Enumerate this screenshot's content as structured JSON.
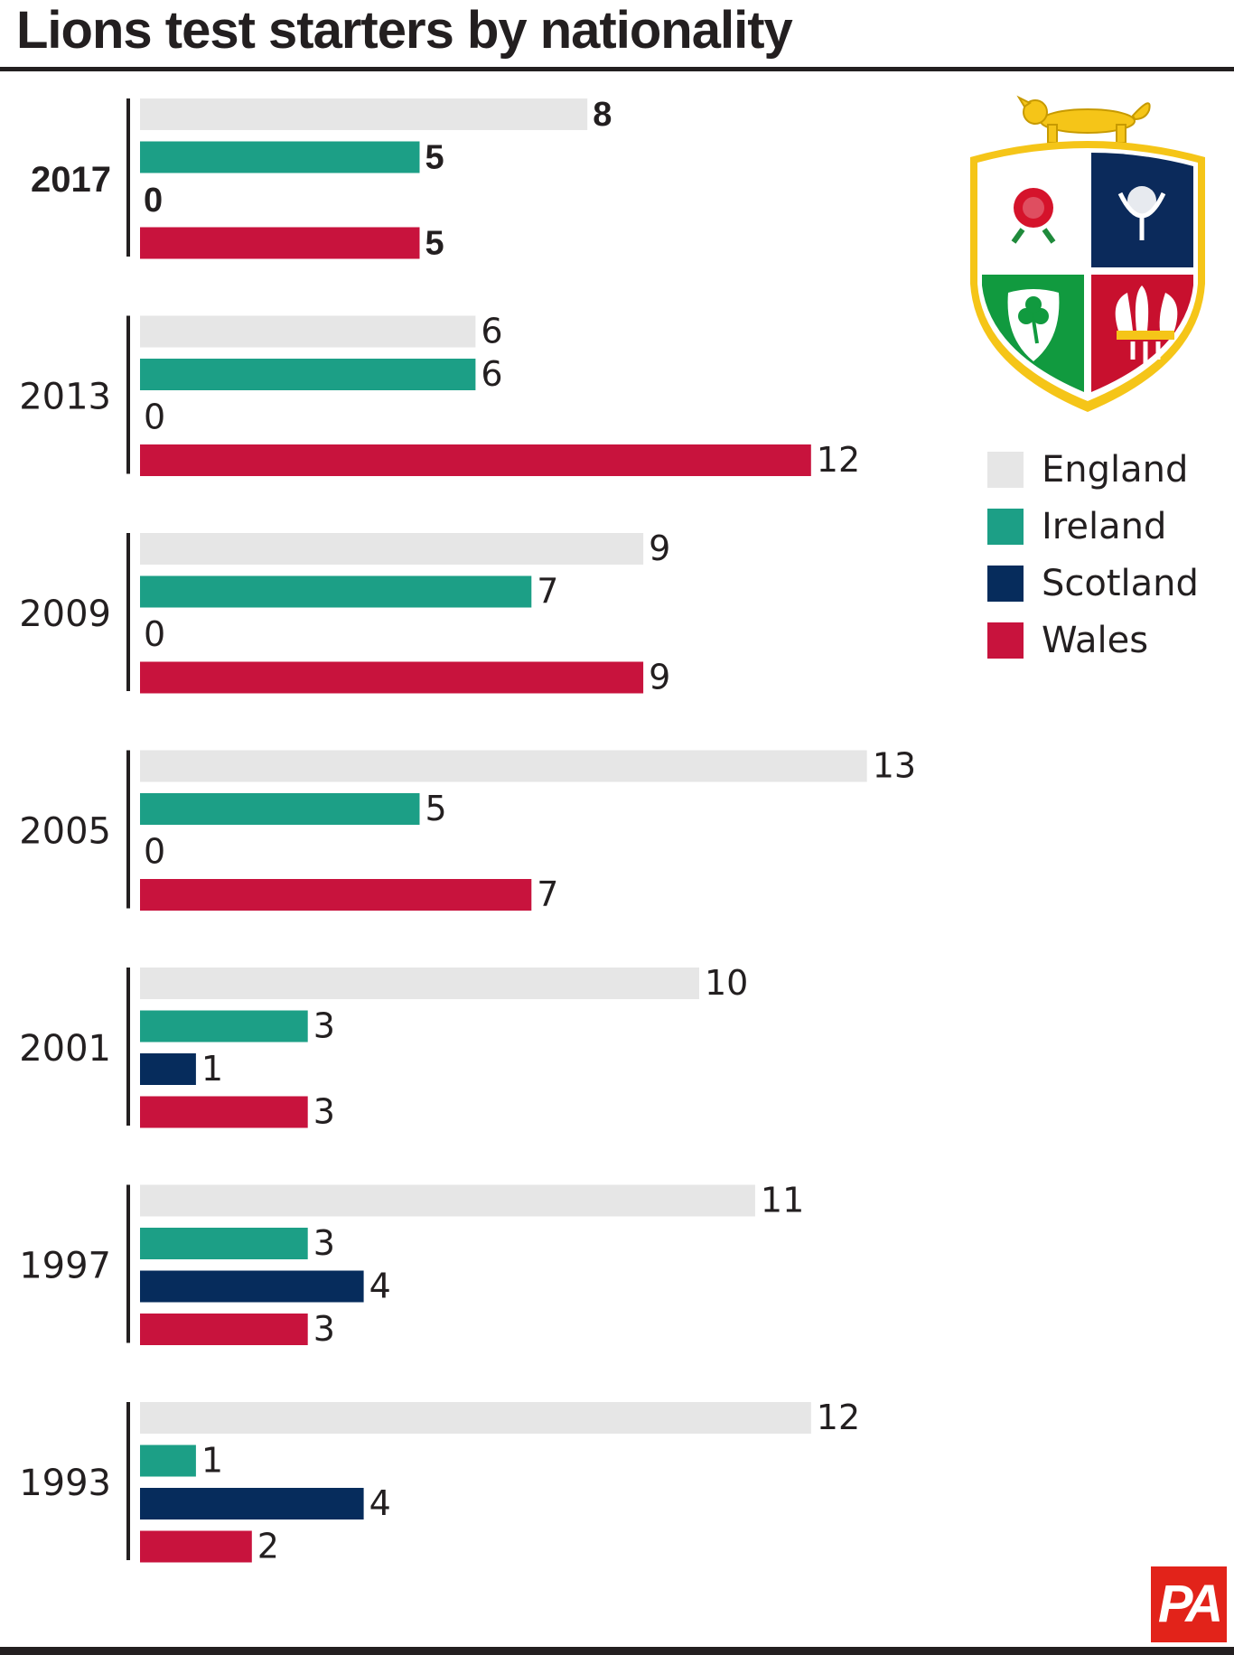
{
  "title": "Lions test starters by nationality",
  "colors": {
    "England": "#e6e6e6",
    "Ireland": "#1c9f86",
    "Scotland": "#062c5c",
    "Wales": "#c8133d"
  },
  "legend": [
    {
      "label": "England",
      "color": "#e6e6e6"
    },
    {
      "label": "Ireland",
      "color": "#1c9f86"
    },
    {
      "label": "Scotland",
      "color": "#062c5c"
    },
    {
      "label": "Wales",
      "color": "#c8133d"
    }
  ],
  "logo_text": "PA",
  "crest_icon": "british-irish-lions-crest",
  "chart_data": {
    "type": "bar",
    "orientation": "horizontal",
    "title": "Lions test starters by nationality",
    "categories": [
      "2017",
      "2013",
      "2009",
      "2005",
      "2001",
      "1997",
      "1993"
    ],
    "highlighted_category": "2017",
    "series": [
      {
        "name": "England",
        "values": [
          8,
          6,
          9,
          13,
          10,
          11,
          12
        ]
      },
      {
        "name": "Ireland",
        "values": [
          5,
          6,
          7,
          5,
          3,
          3,
          1
        ]
      },
      {
        "name": "Scotland",
        "values": [
          0,
          0,
          0,
          0,
          1,
          4,
          4
        ]
      },
      {
        "name": "Wales",
        "values": [
          5,
          12,
          9,
          7,
          3,
          3,
          2
        ]
      }
    ],
    "legend_position": "right",
    "grid": false
  }
}
